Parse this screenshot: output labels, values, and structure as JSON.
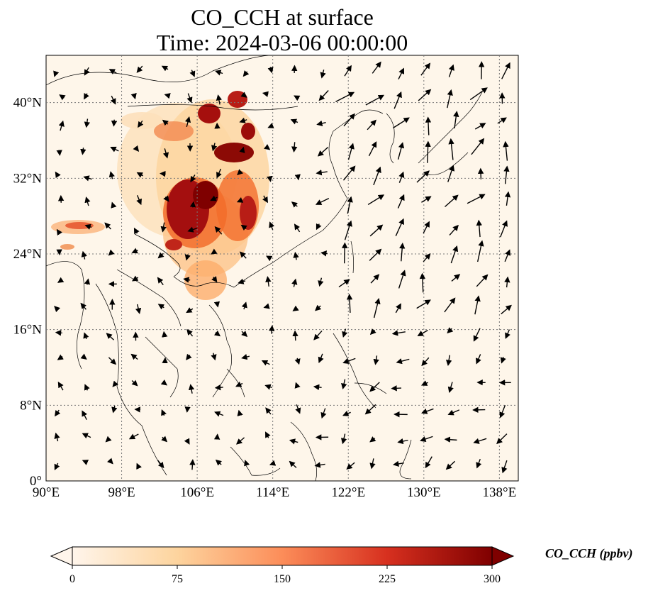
{
  "title_line1": "CO_CCH at surface",
  "title_line2": "Time: 2024-03-06 00:00:00",
  "map": {
    "projection": "PlateCarree",
    "lon_range": [
      90,
      140
    ],
    "lat_range": [
      0,
      45
    ],
    "gridlines": "dotted",
    "x_ticks": [
      {
        "lon": 90,
        "label": "90°E"
      },
      {
        "lon": 98,
        "label": "98°E"
      },
      {
        "lon": 106,
        "label": "106°E"
      },
      {
        "lon": 114,
        "label": "114°E"
      },
      {
        "lon": 122,
        "label": "122°E"
      },
      {
        "lon": 130,
        "label": "130°E"
      },
      {
        "lon": 138,
        "label": "138°E"
      }
    ],
    "y_ticks": [
      {
        "lat": 0,
        "label": "0°"
      },
      {
        "lat": 8,
        "label": "8°N"
      },
      {
        "lat": 16,
        "label": "16°N"
      },
      {
        "lat": 24,
        "label": "24°N"
      },
      {
        "lat": 32,
        "label": "32°N"
      },
      {
        "lat": 40,
        "label": "40°N"
      }
    ],
    "plume_colors": [
      "#fef0dc",
      "#fdd49e",
      "#fdae6b",
      "#f26d2b",
      "#d7301f",
      "#7f0000"
    ]
  },
  "colorbar": {
    "label": "CO_CCH (ppbv)",
    "min": 0,
    "max": 300,
    "extend": "both",
    "ticks": [
      "0",
      "75",
      "150",
      "225",
      "300"
    ],
    "colors": [
      "#fff5eb",
      "#fdd49e",
      "#fc8d59",
      "#d7301f",
      "#7f0000"
    ]
  }
}
